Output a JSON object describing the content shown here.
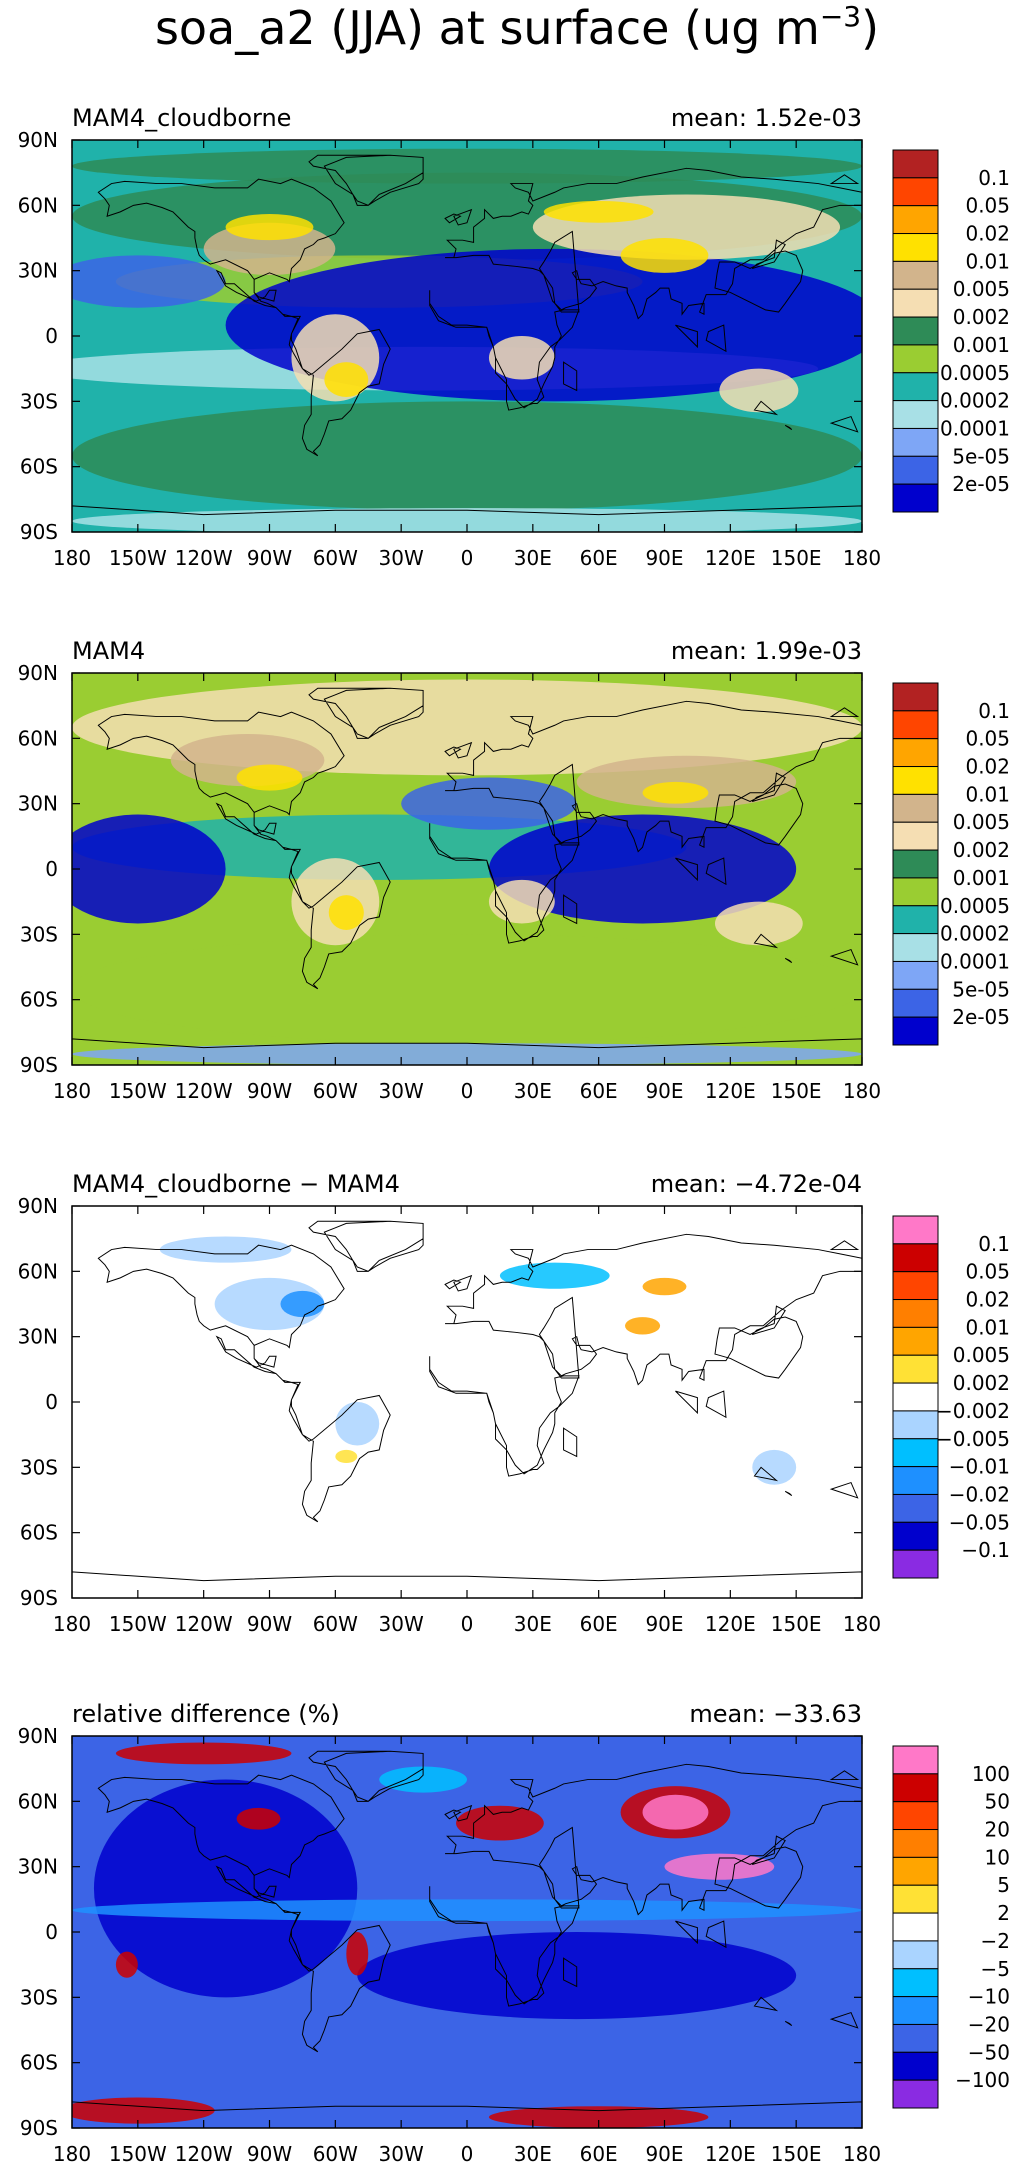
{
  "figure": {
    "title_main": "soa_a2 (JJA) at surface (ug m",
    "title_exponent": "−3",
    "title_close": ")"
  },
  "colors": {
    "abs_palette": [
      "#0000cd",
      "#3c64e6",
      "#7ea6f6",
      "#a8e0e6",
      "#20b2aa",
      "#9acd32",
      "#2e8b57",
      "#f5deb3",
      "#d2b48c",
      "#ffe100",
      "#ffa500",
      "#ff4500",
      "#b22222"
    ],
    "diff_palette": [
      "#8a2be2",
      "#0000cd",
      "#3c64e6",
      "#1e90ff",
      "#00bfff",
      "#aad4ff",
      "#ffffff",
      "#ffe135",
      "#ffa500",
      "#ff7f00",
      "#ff4500",
      "#cc0000",
      "#ff78c8"
    ],
    "coastline": "#000000"
  },
  "panels": [
    {
      "label": "MAM4_cloudborne",
      "mean_text": "mean: 1.52e-03",
      "legend": [
        "0.1",
        "0.05",
        "0.02",
        "0.01",
        "0.005",
        "0.002",
        "0.001",
        "0.0005",
        "0.0002",
        "0.0001",
        "5e-05",
        "2e-05"
      ]
    },
    {
      "label": "MAM4",
      "mean_text": "mean: 1.99e-03",
      "legend": [
        "0.1",
        "0.05",
        "0.02",
        "0.01",
        "0.005",
        "0.002",
        "0.001",
        "0.0005",
        "0.0002",
        "0.0001",
        "5e-05",
        "2e-05"
      ]
    },
    {
      "label": "MAM4_cloudborne − MAM4",
      "mean_text": "mean: −4.72e-04",
      "legend": [
        "0.1",
        "0.05",
        "0.02",
        "0.01",
        "0.005",
        "0.002",
        "−0.002",
        "−0.005",
        "−0.01",
        "−0.02",
        "−0.05",
        "−0.1"
      ]
    },
    {
      "label": "relative difference (%)",
      "mean_text": "mean: −33.63",
      "legend": [
        "100",
        "50",
        "20",
        "10",
        "5",
        "2",
        "−2",
        "−5",
        "−10",
        "−20",
        "−50",
        "−100"
      ]
    }
  ],
  "chart_data": [
    {
      "type": "heatmap",
      "title": "MAM4_cloudborne",
      "variable": "soa_a2 (JJA) at surface (ug m-3)",
      "mean": 0.00152,
      "x_ticks": [
        "180",
        "150W",
        "120W",
        "90W",
        "60W",
        "30W",
        "0",
        "30E",
        "60E",
        "90E",
        "120E",
        "150E",
        "180"
      ],
      "y_ticks": [
        "90N",
        "60N",
        "30N",
        "0",
        "30S",
        "60S",
        "90S"
      ],
      "color_levels": [
        2e-05,
        5e-05,
        0.0001,
        0.0002,
        0.0005,
        0.001,
        0.002,
        0.005,
        0.01,
        0.02,
        0.05,
        0.1
      ],
      "xlim": [
        -180,
        180
      ],
      "ylim": [
        -90,
        90
      ]
    },
    {
      "type": "heatmap",
      "title": "MAM4",
      "variable": "soa_a2 (JJA) at surface (ug m-3)",
      "mean": 0.00199,
      "x_ticks": [
        "180",
        "150W",
        "120W",
        "90W",
        "60W",
        "30W",
        "0",
        "30E",
        "60E",
        "90E",
        "120E",
        "150E",
        "180"
      ],
      "y_ticks": [
        "90N",
        "60N",
        "30N",
        "0",
        "30S",
        "60S",
        "90S"
      ],
      "color_levels": [
        2e-05,
        5e-05,
        0.0001,
        0.0002,
        0.0005,
        0.001,
        0.002,
        0.005,
        0.01,
        0.02,
        0.05,
        0.1
      ],
      "xlim": [
        -180,
        180
      ],
      "ylim": [
        -90,
        90
      ]
    },
    {
      "type": "heatmap",
      "title": "MAM4_cloudborne − MAM4",
      "variable": "soa_a2 (JJA) at surface (ug m-3)",
      "mean": -0.000472,
      "x_ticks": [
        "180",
        "150W",
        "120W",
        "90W",
        "60W",
        "30W",
        "0",
        "30E",
        "60E",
        "90E",
        "120E",
        "150E",
        "180"
      ],
      "y_ticks": [
        "90N",
        "60N",
        "30N",
        "0",
        "30S",
        "60S",
        "90S"
      ],
      "color_levels": [
        -0.1,
        -0.05,
        -0.02,
        -0.01,
        -0.005,
        -0.002,
        0.002,
        0.005,
        0.01,
        0.02,
        0.05,
        0.1
      ],
      "xlim": [
        -180,
        180
      ],
      "ylim": [
        -90,
        90
      ]
    },
    {
      "type": "heatmap",
      "title": "relative difference (%)",
      "variable": "soa_a2 (JJA) at surface (ug m-3)",
      "mean": -33.63,
      "x_ticks": [
        "180",
        "150W",
        "120W",
        "90W",
        "60W",
        "30W",
        "0",
        "30E",
        "60E",
        "90E",
        "120E",
        "150E",
        "180"
      ],
      "y_ticks": [
        "90N",
        "60N",
        "30N",
        "0",
        "30S",
        "60S",
        "90S"
      ],
      "color_levels": [
        -100,
        -50,
        -20,
        -10,
        -5,
        -2,
        2,
        5,
        10,
        20,
        50,
        100
      ],
      "xlim": [
        -180,
        180
      ],
      "ylim": [
        -90,
        90
      ]
    }
  ]
}
